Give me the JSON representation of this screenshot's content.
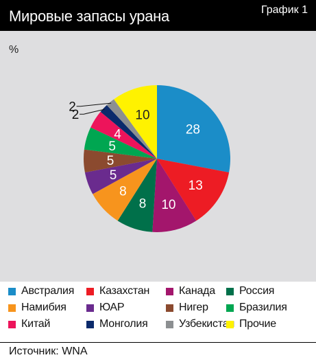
{
  "header": {
    "title": "Мировые запасы урана",
    "badge": "График 1"
  },
  "unit": "%",
  "chart_data": {
    "type": "pie",
    "categories": [
      "Австралия",
      "Казахстан",
      "Канада",
      "Россия",
      "Намибия",
      "ЮАР",
      "Нигер",
      "Бразилия",
      "Китай",
      "Монголия",
      "Узбекистан",
      "Прочие"
    ],
    "values": [
      28,
      13,
      10,
      8,
      8,
      5,
      5,
      5,
      4,
      2,
      2,
      10
    ],
    "colors": [
      "#1b8dc8",
      "#ed1c24",
      "#a3166c",
      "#00704a",
      "#f7941d",
      "#6a2b8e",
      "#8b4a2f",
      "#00a651",
      "#ed145b",
      "#0b2a6b",
      "#8c8f91",
      "#fff200"
    ],
    "label_colors": [
      "#ffffff",
      "#ffffff",
      "#ffffff",
      "#ffffff",
      "#ffffff",
      "#ffffff",
      "#ffffff",
      "#ffffff",
      "#ffffff",
      "#222222",
      "#222222",
      "#222222"
    ],
    "legend_placement": "bottom"
  },
  "source": "Источник: WNA"
}
